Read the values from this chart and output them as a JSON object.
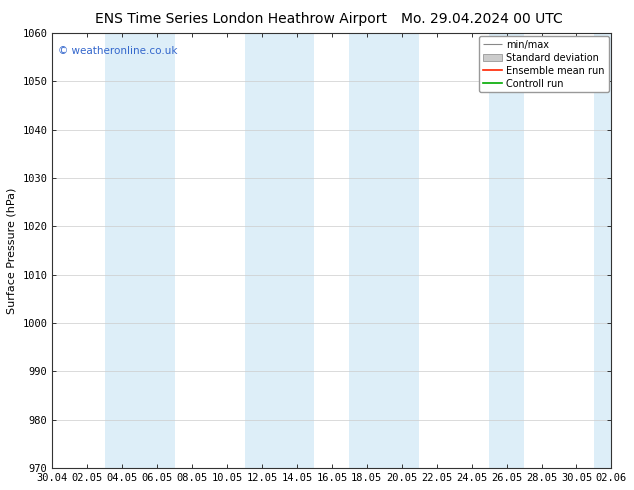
{
  "title_left": "ENS Time Series London Heathrow Airport",
  "title_right": "Mo. 29.04.2024 00 UTC",
  "ylabel": "Surface Pressure (hPa)",
  "ylim": [
    970,
    1060
  ],
  "yticks": [
    970,
    980,
    990,
    1000,
    1010,
    1020,
    1030,
    1040,
    1050,
    1060
  ],
  "xtick_labels": [
    "30.04",
    "02.05",
    "04.05",
    "06.05",
    "08.05",
    "10.05",
    "12.05",
    "14.05",
    "16.05",
    "18.05",
    "20.05",
    "22.05",
    "24.05",
    "26.05",
    "28.05",
    "30.05",
    "02.06"
  ],
  "watermark": "© weatheronline.co.uk",
  "watermark_color": "#3366cc",
  "bg_color": "#ffffff",
  "plot_bg_color": "#ffffff",
  "band_color": "#ddeef8",
  "band_alpha": 1.0,
  "legend_labels": [
    "min/max",
    "Standard deviation",
    "Ensemble mean run",
    "Controll run"
  ],
  "legend_colors": [
    "#999999",
    "#cccccc",
    "#ff0000",
    "#00aa00"
  ],
  "grid_color": "#cccccc",
  "spine_color": "#333333",
  "title_fontsize": 10,
  "label_fontsize": 8,
  "tick_fontsize": 7.5,
  "watermark_fontsize": 7.5,
  "legend_fontsize": 7
}
